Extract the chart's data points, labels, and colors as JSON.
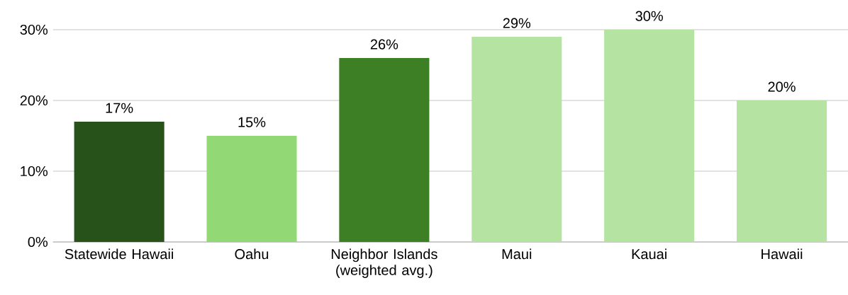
{
  "chart_data": {
    "type": "bar",
    "categories": [
      "Statewide Hawaii",
      "Oahu",
      "Neighbor Islands (weighted avg.)",
      "Maui",
      "Kauai",
      "Hawaii"
    ],
    "values": [
      17,
      15,
      26,
      29,
      30,
      20
    ],
    "value_labels": [
      "17%",
      "15%",
      "26%",
      "29%",
      "30%",
      "20%"
    ],
    "colors": [
      "#27531b",
      "#92d975",
      "#3d7f24",
      "#b5e4a2",
      "#b5e4a2",
      "#b5e4a2"
    ],
    "ylim": [
      0,
      30
    ],
    "yticks": [
      {
        "value": 0,
        "label": "0%"
      },
      {
        "value": 10,
        "label": "10%"
      },
      {
        "value": 20,
        "label": "20%"
      },
      {
        "value": 30,
        "label": "30%"
      }
    ],
    "grid": "y"
  }
}
